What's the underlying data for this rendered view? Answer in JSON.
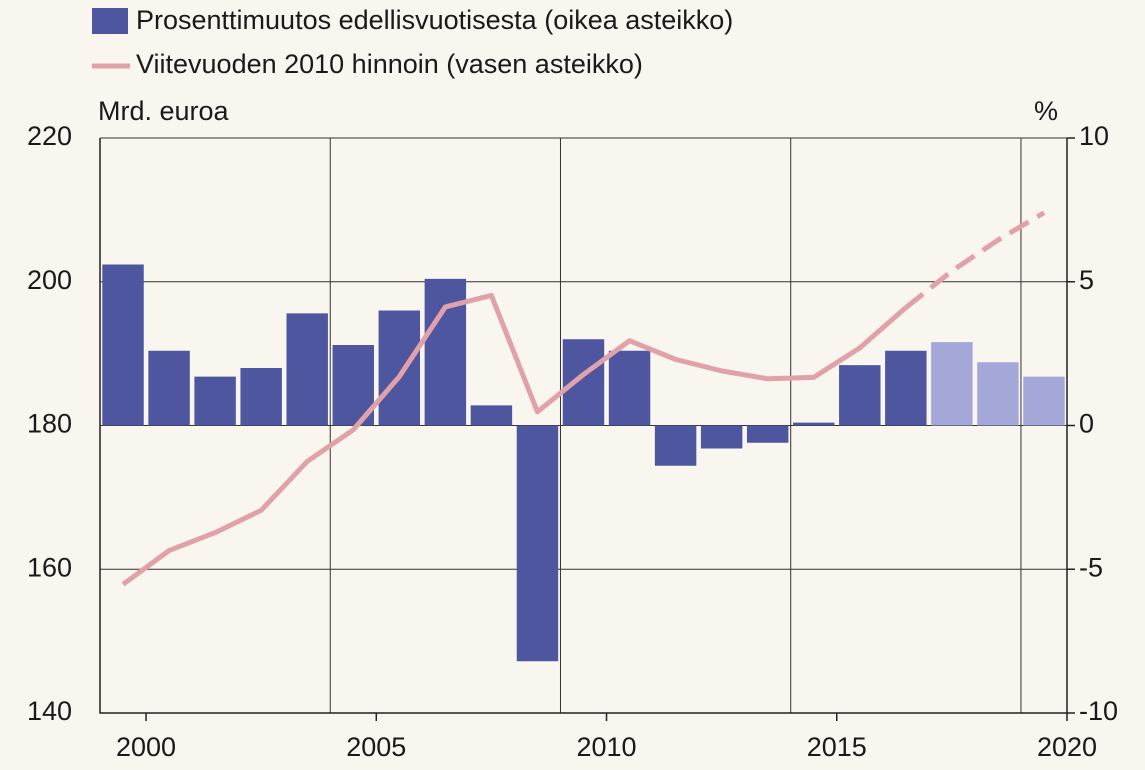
{
  "chart_data": {
    "type": "bar-line",
    "y_axis_label": "Mrd. euroa",
    "y2_axis_label": "%",
    "x": [
      1999,
      2000,
      2001,
      2002,
      2003,
      2004,
      2005,
      2006,
      2007,
      2008,
      2009,
      2010,
      2011,
      2012,
      2013,
      2014,
      2015,
      2016,
      2017,
      2018,
      2019
    ],
    "xlim": [
      1999,
      2020
    ],
    "xticks": [
      2000,
      2005,
      2010,
      2015,
      2020
    ],
    "xgrid": [
      2004,
      2009,
      2014,
      2019
    ],
    "ylim": [
      140,
      220
    ],
    "yticks": [
      140,
      160,
      180,
      200,
      220
    ],
    "y2lim": [
      -10,
      10
    ],
    "y2ticks": [
      -10,
      -5,
      0,
      5,
      10
    ],
    "grid": true,
    "forecast_from": 2016,
    "series": [
      {
        "name": "Prosenttimuutos edellisvuotisesta (oikea asteikko)",
        "type": "bar",
        "axis": "y2",
        "color": "#4e56a0",
        "forecast_color": "#a3a8d8",
        "values": [
          5.6,
          2.6,
          1.7,
          2.0,
          3.9,
          2.8,
          4.0,
          5.1,
          0.7,
          -8.2,
          3.0,
          2.6,
          -1.4,
          -0.8,
          -0.6,
          0.1,
          2.1,
          2.6,
          2.9,
          2.2,
          1.7
        ]
      },
      {
        "name": "Viitevuoden 2010 hinnoin (vasen asteikko)",
        "type": "line",
        "axis": "y",
        "color": "#e0a2a8",
        "values": [
          157.9,
          162.6,
          165.1,
          168.2,
          175.0,
          179.4,
          186.8,
          196.5,
          198.1,
          181.9,
          187.1,
          191.8,
          189.2,
          187.6,
          186.5,
          186.7,
          190.8,
          196.4,
          201.5,
          205.8,
          209.6
        ]
      }
    ]
  }
}
